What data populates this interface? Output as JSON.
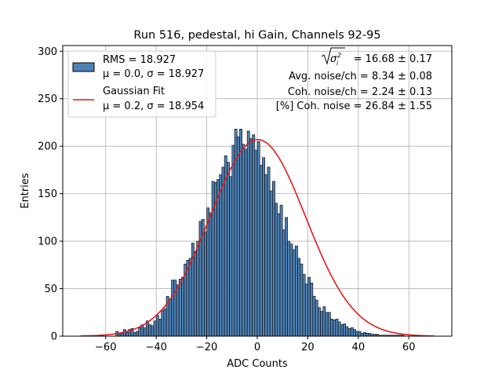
{
  "chart_data": {
    "type": "bar",
    "title": "Run 516, pedestal, hi Gain, Channels 92-95",
    "xlabel": "ADC Counts",
    "ylabel": "Entries",
    "xlim": [
      -77,
      77
    ],
    "ylim": [
      0,
      306
    ],
    "xticks": [
      -60,
      -40,
      -20,
      0,
      20,
      40,
      60
    ],
    "yticks": [
      0,
      50,
      100,
      150,
      200,
      250,
      300
    ],
    "grid": true,
    "legend_position": "top-left",
    "bar_color": "#4f81b4",
    "fit_color": "#e41a1c",
    "histogram": {
      "name_lines": [
        "RMS = 18.927",
        "μ = 0.0, σ = 18.927"
      ],
      "bin_start": -70,
      "bin_width": 1,
      "counts": [
        0,
        0,
        0,
        0,
        0,
        0,
        0,
        0,
        0,
        0,
        0,
        0,
        0,
        0,
        5,
        3,
        3,
        7,
        4,
        7,
        8,
        4,
        5,
        9,
        12,
        9,
        16,
        12,
        11,
        16,
        22,
        18,
        27,
        29,
        42,
        39,
        59,
        59,
        54,
        60,
        62,
        76,
        80,
        82,
        98,
        89,
        100,
        121,
        123,
        110,
        135,
        130,
        163,
        162,
        165,
        170,
        178,
        190,
        183,
        168,
        201,
        218,
        210,
        218,
        202,
        197,
        216,
        208,
        212,
        196,
        205,
        180,
        188,
        170,
        178,
        153,
        163,
        140,
        129,
        138,
        112,
        125,
        100,
        97,
        91,
        95,
        82,
        76,
        65,
        55,
        62,
        56,
        42,
        38,
        30,
        26,
        31,
        25,
        25,
        18,
        17,
        18,
        15,
        12,
        13,
        10,
        8,
        9,
        7,
        5,
        5,
        3,
        4,
        3,
        3,
        2,
        2,
        2,
        1,
        1,
        1,
        1,
        1,
        1,
        1,
        1,
        1,
        1,
        0,
        0,
        0,
        0,
        0,
        0,
        0,
        0,
        0,
        0,
        0,
        0,
        0
      ]
    },
    "fit": {
      "name_lines": [
        "Gaussian Fit",
        "μ = 0.2, σ = 18.954"
      ],
      "mu": 0.2,
      "sigma": 18.954,
      "amplitude": 207,
      "x_range": [
        -70,
        70
      ]
    },
    "stats": {
      "line1_rest": "= 16.68 ± 0.17",
      "line2": "Avg. noise/ch = 8.34 ± 0.08",
      "line3": "Coh. noise/ch = 2.24 ± 0.13",
      "line4": "[%] Coh. noise = 26.84 ± 1.55"
    }
  }
}
